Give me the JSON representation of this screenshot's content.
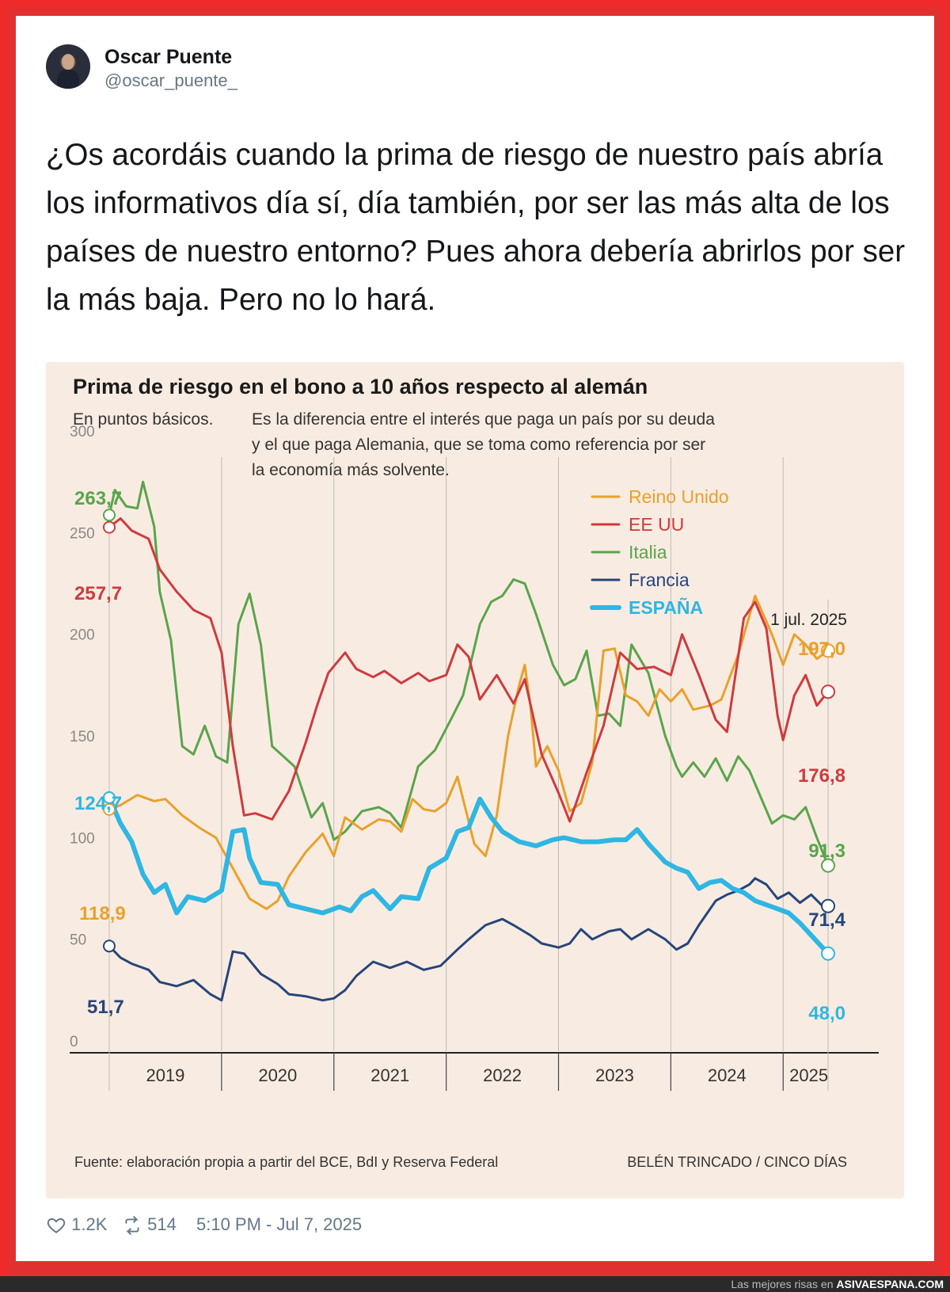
{
  "tweet": {
    "author_name": "Oscar Puente",
    "author_handle": "@oscar_puente_",
    "text": "¿Os acordáis cuando la prima de riesgo de nuestro país abría los informativos día sí, día también, por ser las más alta de los países de nuestro entorno? Pues ahora debería abrirlos por ser la más baja. Pero no lo hará.",
    "likes": "1.2K",
    "retweets": "514",
    "timestamp": "5:10 PM - Jul 7, 2025"
  },
  "watermark": {
    "prefix": "Las mejores risas en",
    "site": "ASIVAESPANA.COM"
  },
  "colors": {
    "border": "#ee2a2a",
    "reino_unido": "#e9a02b",
    "ee_uu": "#cf3a3e",
    "italia": "#5aa44c",
    "francia": "#27457a",
    "espana": "#2fb6e3",
    "chart_bg": "#f8ece2"
  },
  "chart_data": {
    "type": "line",
    "title": "Prima de riesgo en el bono a 10 años respecto al alemán",
    "subtitle_lead": "En puntos básicos.",
    "subtitle_lines": [
      "Es la diferencia entre el interés que paga un país por su deuda",
      "y el que paga Alemania, que se toma como referencia por ser",
      "la economía más solvente."
    ],
    "ylim": [
      0,
      300
    ],
    "yticks": [
      0,
      50,
      100,
      150,
      200,
      250,
      300
    ],
    "x_range": [
      2018.5,
      2025.5
    ],
    "year_labels": [
      "2019",
      "2020",
      "2021",
      "2022",
      "2023",
      "2024",
      "2025"
    ],
    "source": "Fuente: elaboración propia a partir del BCE, BdI y Reserva Federal",
    "credit": "BELÉN TRINCADO / CINCO DÍAS",
    "end_date_label": "1 jul. 2025",
    "series": [
      {
        "key": "reino_unido",
        "name": "Reino Unido",
        "start_label": "118,9",
        "end_label": "197,0",
        "points": [
          [
            2018.5,
            118.9
          ],
          [
            2018.6,
            121
          ],
          [
            2018.75,
            126
          ],
          [
            2018.9,
            123
          ],
          [
            2019.0,
            124
          ],
          [
            2019.15,
            116
          ],
          [
            2019.3,
            110
          ],
          [
            2019.45,
            105
          ],
          [
            2019.55,
            95
          ],
          [
            2019.65,
            85
          ],
          [
            2019.75,
            75
          ],
          [
            2019.9,
            70
          ],
          [
            2020.0,
            74
          ],
          [
            2020.1,
            86
          ],
          [
            2020.25,
            98
          ],
          [
            2020.4,
            107
          ],
          [
            2020.5,
            96
          ],
          [
            2020.6,
            115
          ],
          [
            2020.75,
            109
          ],
          [
            2020.9,
            114
          ],
          [
            2021.0,
            113
          ],
          [
            2021.1,
            108
          ],
          [
            2021.2,
            124
          ],
          [
            2021.3,
            119
          ],
          [
            2021.4,
            118
          ],
          [
            2021.5,
            122
          ],
          [
            2021.6,
            135
          ],
          [
            2021.75,
            102
          ],
          [
            2021.85,
            96
          ],
          [
            2021.95,
            116
          ],
          [
            2022.05,
            155
          ],
          [
            2022.15,
            180
          ],
          [
            2022.2,
            190
          ],
          [
            2022.25,
            170
          ],
          [
            2022.3,
            140
          ],
          [
            2022.4,
            150
          ],
          [
            2022.5,
            138
          ],
          [
            2022.6,
            118
          ],
          [
            2022.7,
            122
          ],
          [
            2022.8,
            142
          ],
          [
            2022.9,
            197
          ],
          [
            2023.0,
            198
          ],
          [
            2023.1,
            175
          ],
          [
            2023.2,
            172
          ],
          [
            2023.3,
            165
          ],
          [
            2023.4,
            178
          ],
          [
            2023.5,
            172
          ],
          [
            2023.6,
            178
          ],
          [
            2023.7,
            168
          ],
          [
            2023.85,
            170
          ],
          [
            2023.95,
            173
          ],
          [
            2024.1,
            195
          ],
          [
            2024.25,
            224
          ],
          [
            2024.4,
            205
          ],
          [
            2024.5,
            190
          ],
          [
            2024.6,
            205
          ],
          [
            2024.7,
            200
          ],
          [
            2024.8,
            193
          ],
          [
            2024.9,
            197.0
          ]
        ]
      },
      {
        "key": "ee_uu",
        "name": "EE UU",
        "start_label": "257,7",
        "end_label": "176,8",
        "points": [
          [
            2018.5,
            257.7
          ],
          [
            2018.6,
            262
          ],
          [
            2018.7,
            256
          ],
          [
            2018.85,
            252
          ],
          [
            2018.95,
            237
          ],
          [
            2019.1,
            226
          ],
          [
            2019.25,
            217
          ],
          [
            2019.4,
            213
          ],
          [
            2019.5,
            196
          ],
          [
            2019.6,
            150
          ],
          [
            2019.7,
            116
          ],
          [
            2019.8,
            117
          ],
          [
            2019.95,
            114
          ],
          [
            2020.1,
            128
          ],
          [
            2020.25,
            152
          ],
          [
            2020.35,
            170
          ],
          [
            2020.45,
            186
          ],
          [
            2020.6,
            196
          ],
          [
            2020.7,
            188
          ],
          [
            2020.85,
            184
          ],
          [
            2020.95,
            187
          ],
          [
            2021.1,
            181
          ],
          [
            2021.25,
            186
          ],
          [
            2021.35,
            182
          ],
          [
            2021.5,
            185
          ],
          [
            2021.6,
            200
          ],
          [
            2021.7,
            194
          ],
          [
            2021.8,
            173
          ],
          [
            2021.95,
            185
          ],
          [
            2022.1,
            171
          ],
          [
            2022.2,
            183
          ],
          [
            2022.35,
            146
          ],
          [
            2022.5,
            127
          ],
          [
            2022.6,
            113
          ],
          [
            2022.75,
            137
          ],
          [
            2022.9,
            160
          ],
          [
            2023.05,
            196
          ],
          [
            2023.2,
            188
          ],
          [
            2023.35,
            189
          ],
          [
            2023.5,
            185
          ],
          [
            2023.6,
            205
          ],
          [
            2023.75,
            185
          ],
          [
            2023.9,
            163
          ],
          [
            2024.0,
            157
          ],
          [
            2024.15,
            213
          ],
          [
            2024.25,
            221
          ],
          [
            2024.35,
            208
          ],
          [
            2024.45,
            165
          ],
          [
            2024.5,
            153
          ],
          [
            2024.6,
            175
          ],
          [
            2024.7,
            185
          ],
          [
            2024.8,
            170
          ],
          [
            2024.9,
            176.8
          ]
        ]
      },
      {
        "key": "italia",
        "name": "Italia",
        "start_label": "263,7",
        "end_label": "91,3",
        "points": [
          [
            2018.5,
            263.7
          ],
          [
            2018.55,
            276
          ],
          [
            2018.65,
            268
          ],
          [
            2018.75,
            267
          ],
          [
            2018.8,
            280
          ],
          [
            2018.9,
            258
          ],
          [
            2018.95,
            226
          ],
          [
            2019.05,
            202
          ],
          [
            2019.15,
            150
          ],
          [
            2019.25,
            146
          ],
          [
            2019.35,
            160
          ],
          [
            2019.45,
            145
          ],
          [
            2019.55,
            142
          ],
          [
            2019.65,
            210
          ],
          [
            2019.75,
            225
          ],
          [
            2019.85,
            200
          ],
          [
            2019.95,
            150
          ],
          [
            2020.05,
            145
          ],
          [
            2020.15,
            140
          ],
          [
            2020.3,
            115
          ],
          [
            2020.4,
            122
          ],
          [
            2020.5,
            104
          ],
          [
            2020.6,
            108
          ],
          [
            2020.75,
            118
          ],
          [
            2020.9,
            120
          ],
          [
            2021.0,
            117
          ],
          [
            2021.1,
            110
          ],
          [
            2021.25,
            140
          ],
          [
            2021.4,
            148
          ],
          [
            2021.55,
            164
          ],
          [
            2021.65,
            175
          ],
          [
            2021.8,
            210
          ],
          [
            2021.9,
            221
          ],
          [
            2022.0,
            224
          ],
          [
            2022.1,
            232
          ],
          [
            2022.2,
            230
          ],
          [
            2022.3,
            215
          ],
          [
            2022.45,
            190
          ],
          [
            2022.55,
            180
          ],
          [
            2022.65,
            183
          ],
          [
            2022.75,
            197
          ],
          [
            2022.85,
            165
          ],
          [
            2022.95,
            166
          ],
          [
            2023.05,
            160
          ],
          [
            2023.15,
            200
          ],
          [
            2023.3,
            186
          ],
          [
            2023.45,
            155
          ],
          [
            2023.55,
            140
          ],
          [
            2023.6,
            135
          ],
          [
            2023.7,
            142
          ],
          [
            2023.8,
            135
          ],
          [
            2023.9,
            144
          ],
          [
            2024.0,
            133
          ],
          [
            2024.1,
            145
          ],
          [
            2024.2,
            138
          ],
          [
            2024.3,
            125
          ],
          [
            2024.4,
            112
          ],
          [
            2024.5,
            116
          ],
          [
            2024.6,
            114
          ],
          [
            2024.7,
            120
          ],
          [
            2024.8,
            105
          ],
          [
            2024.9,
            91.3
          ]
        ]
      },
      {
        "key": "francia",
        "name": "Francia",
        "start_label": "51,7",
        "end_label": "71,4",
        "points": [
          [
            2018.5,
            51.7
          ],
          [
            2018.6,
            46
          ],
          [
            2018.7,
            43
          ],
          [
            2018.85,
            40
          ],
          [
            2018.95,
            34
          ],
          [
            2019.1,
            32
          ],
          [
            2019.25,
            35
          ],
          [
            2019.4,
            28
          ],
          [
            2019.5,
            25
          ],
          [
            2019.6,
            49
          ],
          [
            2019.7,
            48
          ],
          [
            2019.85,
            38
          ],
          [
            2020.0,
            33
          ],
          [
            2020.1,
            28
          ],
          [
            2020.25,
            27
          ],
          [
            2020.4,
            25
          ],
          [
            2020.5,
            26
          ],
          [
            2020.6,
            30
          ],
          [
            2020.7,
            37
          ],
          [
            2020.85,
            44
          ],
          [
            2021.0,
            41
          ],
          [
            2021.15,
            44
          ],
          [
            2021.3,
            40
          ],
          [
            2021.45,
            42
          ],
          [
            2021.6,
            50
          ],
          [
            2021.7,
            55
          ],
          [
            2021.85,
            62
          ],
          [
            2022.0,
            65
          ],
          [
            2022.1,
            62
          ],
          [
            2022.25,
            57
          ],
          [
            2022.35,
            53
          ],
          [
            2022.5,
            51
          ],
          [
            2022.6,
            53
          ],
          [
            2022.7,
            60
          ],
          [
            2022.8,
            55
          ],
          [
            2022.95,
            59
          ],
          [
            2023.05,
            60
          ],
          [
            2023.15,
            55
          ],
          [
            2023.3,
            60
          ],
          [
            2023.45,
            55
          ],
          [
            2023.55,
            50
          ],
          [
            2023.65,
            53
          ],
          [
            2023.75,
            62
          ],
          [
            2023.9,
            74
          ],
          [
            2024.0,
            77
          ],
          [
            2024.1,
            79
          ],
          [
            2024.2,
            82
          ],
          [
            2024.25,
            85
          ],
          [
            2024.35,
            82
          ],
          [
            2024.45,
            75
          ],
          [
            2024.55,
            78
          ],
          [
            2024.65,
            73
          ],
          [
            2024.75,
            77
          ],
          [
            2024.85,
            71.4
          ],
          [
            2024.9,
            71.4
          ]
        ]
      },
      {
        "key": "espana",
        "name": "ESPAÑA",
        "start_label": "124,7",
        "end_label": "48,0",
        "points": [
          [
            2018.5,
            124.7
          ],
          [
            2018.6,
            112
          ],
          [
            2018.7,
            103
          ],
          [
            2018.8,
            87
          ],
          [
            2018.9,
            78
          ],
          [
            2019.0,
            82
          ],
          [
            2019.1,
            68
          ],
          [
            2019.2,
            76
          ],
          [
            2019.35,
            74
          ],
          [
            2019.5,
            79
          ],
          [
            2019.6,
            108
          ],
          [
            2019.7,
            109
          ],
          [
            2019.75,
            95
          ],
          [
            2019.85,
            83
          ],
          [
            2020.0,
            82
          ],
          [
            2020.1,
            72
          ],
          [
            2020.25,
            70
          ],
          [
            2020.4,
            68
          ],
          [
            2020.55,
            71
          ],
          [
            2020.65,
            69
          ],
          [
            2020.75,
            76
          ],
          [
            2020.85,
            79
          ],
          [
            2021.0,
            70
          ],
          [
            2021.1,
            76
          ],
          [
            2021.25,
            75
          ],
          [
            2021.35,
            90
          ],
          [
            2021.5,
            95
          ],
          [
            2021.6,
            108
          ],
          [
            2021.7,
            110
          ],
          [
            2021.8,
            124
          ],
          [
            2021.9,
            115
          ],
          [
            2022.0,
            108
          ],
          [
            2022.15,
            103
          ],
          [
            2022.3,
            101
          ],
          [
            2022.45,
            104
          ],
          [
            2022.55,
            105
          ],
          [
            2022.7,
            103
          ],
          [
            2022.85,
            103
          ],
          [
            2023.0,
            104
          ],
          [
            2023.1,
            104
          ],
          [
            2023.2,
            109
          ],
          [
            2023.3,
            102
          ],
          [
            2023.45,
            93
          ],
          [
            2023.55,
            90
          ],
          [
            2023.65,
            88
          ],
          [
            2023.75,
            80
          ],
          [
            2023.85,
            83
          ],
          [
            2023.95,
            84
          ],
          [
            2024.05,
            80
          ],
          [
            2024.15,
            78
          ],
          [
            2024.25,
            74
          ],
          [
            2024.35,
            72
          ],
          [
            2024.45,
            70
          ],
          [
            2024.55,
            68
          ],
          [
            2024.65,
            63
          ],
          [
            2024.75,
            57
          ],
          [
            2024.9,
            48.0
          ]
        ]
      }
    ]
  }
}
